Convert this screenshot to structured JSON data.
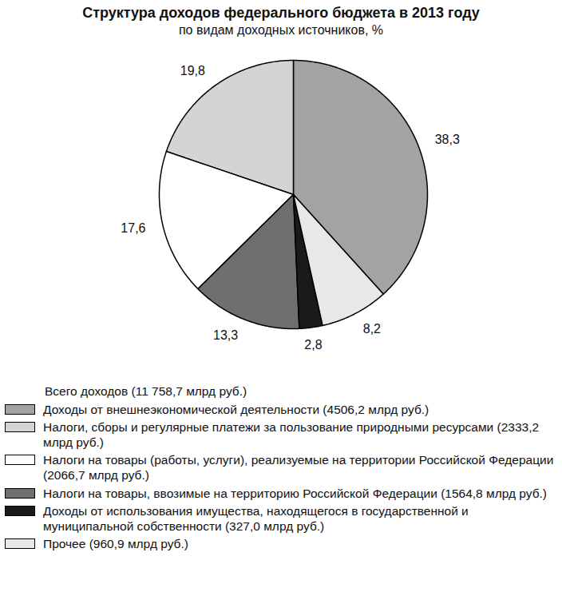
{
  "chart_data": {
    "type": "pie",
    "title": "Структура доходов федерального бюджета в 2013 году",
    "subtitle": "по видам доходных источников, %",
    "total_label": "Всего доходов (11 758,7 млрд руб.)",
    "categories": [
      "Доходы от внешнеэкономической деятельности (4506,2 млрд руб.)",
      "Налоги, сборы и регулярные платежи за пользование природными ресурсами (2333,2 млрд руб.)",
      "Налоги на товары (работы, услуги), реализуемые на территории Российской Федерации (2066,7 млрд руб.)",
      "Налоги на товары, ввозимые на территорию Российской Федерации (1564,8 млрд руб.)",
      "Доходы от использования имущества, находящегося в государственной и муниципальной собственности (327,0 млрд руб.)",
      "Прочее (960,9 млрд руб.)"
    ],
    "values": [
      38.3,
      19.8,
      17.6,
      13.3,
      2.8,
      8.2
    ],
    "value_labels": [
      "38,3",
      "19,8",
      "17,6",
      "13,3",
      "2,8",
      "8,2"
    ],
    "colors": [
      "#a3a3a3",
      "#d4d4d4",
      "#ffffff",
      "#6f6f6f",
      "#1a1a1a",
      "#e8e8e8"
    ],
    "data_labels": true,
    "legend": "bottom"
  }
}
